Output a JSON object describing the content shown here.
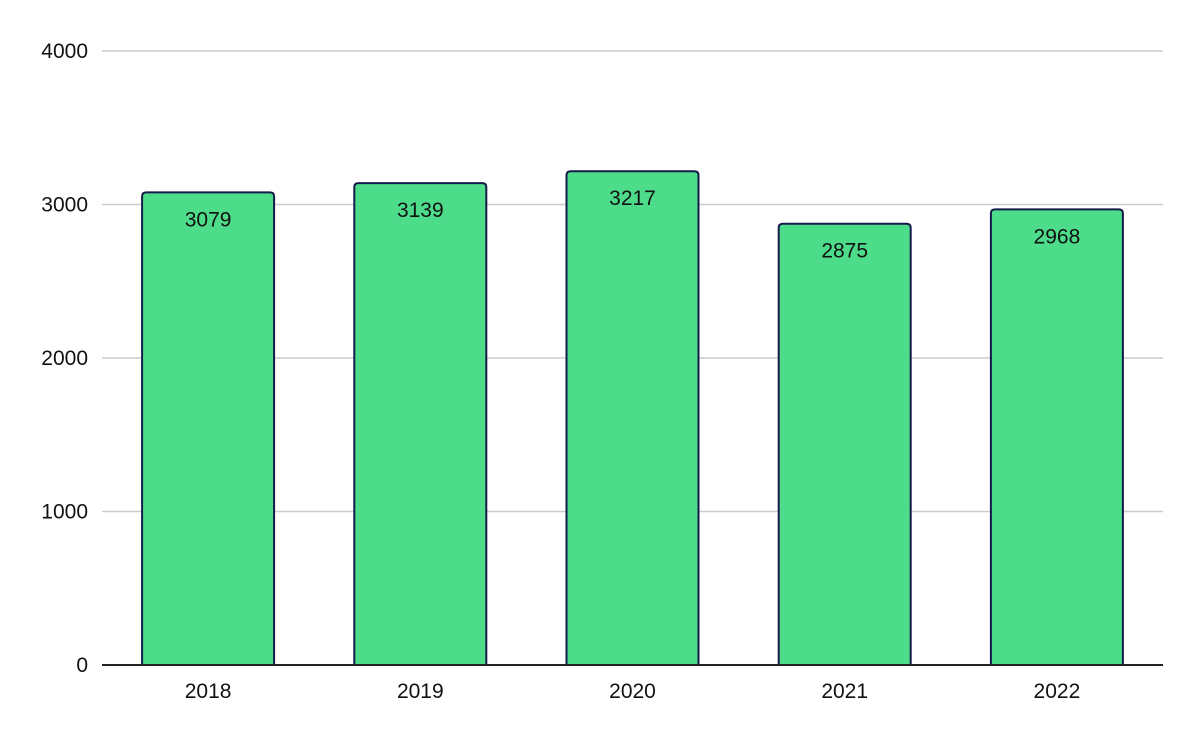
{
  "chart_data": {
    "type": "bar",
    "categories": [
      "2018",
      "2019",
      "2020",
      "2021",
      "2022"
    ],
    "values": [
      3079,
      3139,
      3217,
      2875,
      2968
    ],
    "ylim": [
      0,
      4000
    ],
    "yticks": [
      0,
      1000,
      2000,
      3000,
      4000
    ],
    "grid": true,
    "data_labels": true,
    "colors": {
      "bar_fill": "#4ddc8a",
      "bar_stroke": "#141a4a",
      "grid": "#cccccc",
      "axis": "#222222"
    }
  }
}
